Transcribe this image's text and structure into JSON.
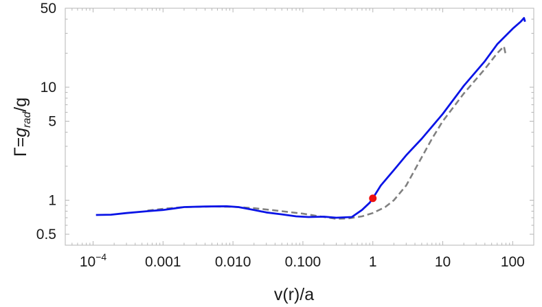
{
  "chart_data": {
    "type": "line",
    "xscale": "log",
    "yscale": "log",
    "xlim": [
      4e-05,
      200
    ],
    "ylim": [
      0.4,
      50
    ],
    "xlabel": "v(r)/a",
    "ylabel": {
      "prefix": "Γ=",
      "symbol": "g",
      "subscript": "rad",
      "suffix": "/g"
    },
    "x_ticks": [
      {
        "value": 0.0001,
        "base": "10",
        "exp": "−4"
      },
      {
        "value": 0.001,
        "label": "0.001"
      },
      {
        "value": 0.01,
        "label": "0.010"
      },
      {
        "value": 0.1,
        "label": "0.100"
      },
      {
        "value": 1,
        "label": "1"
      },
      {
        "value": 10,
        "label": "10"
      },
      {
        "value": 100,
        "label": "100"
      }
    ],
    "y_ticks": [
      {
        "value": 0.5,
        "label": "0.5"
      },
      {
        "value": 1,
        "label": "1"
      },
      {
        "value": 5,
        "label": "5"
      },
      {
        "value": 10,
        "label": "10"
      },
      {
        "value": 50,
        "label": "50"
      }
    ],
    "grid": false,
    "frame": true,
    "colors": {
      "solid": "#0a14e6",
      "dashed": "#808080",
      "marker": "#ee1111",
      "frame": "#b5b5b5",
      "text": "#1a1a1a"
    },
    "series": [
      {
        "style": "solid",
        "points": [
          [
            0.00011,
            0.74
          ],
          [
            0.00018,
            0.745
          ],
          [
            0.0003,
            0.77
          ],
          [
            0.0006,
            0.8
          ],
          [
            0.001,
            0.82
          ],
          [
            0.002,
            0.87
          ],
          [
            0.004,
            0.88
          ],
          [
            0.008,
            0.885
          ],
          [
            0.012,
            0.87
          ],
          [
            0.02,
            0.82
          ],
          [
            0.03,
            0.78
          ],
          [
            0.05,
            0.75
          ],
          [
            0.08,
            0.72
          ],
          [
            0.12,
            0.71
          ],
          [
            0.2,
            0.715
          ],
          [
            0.3,
            0.7
          ],
          [
            0.5,
            0.71
          ],
          [
            0.7,
            0.82
          ],
          [
            0.9,
            0.95
          ],
          [
            1.0,
            1.04
          ],
          [
            1.3,
            1.35
          ],
          [
            2,
            1.85
          ],
          [
            3,
            2.5
          ],
          [
            5,
            3.5
          ],
          [
            10,
            5.8
          ],
          [
            20,
            10.3
          ],
          [
            40,
            17
          ],
          [
            60,
            24
          ],
          [
            100,
            33
          ],
          [
            130,
            38
          ],
          [
            145,
            41
          ],
          [
            150,
            38
          ]
        ]
      },
      {
        "style": "dashed",
        "points": [
          [
            0.0006,
            0.81
          ],
          [
            0.001,
            0.84
          ],
          [
            0.002,
            0.87
          ],
          [
            0.005,
            0.88
          ],
          [
            0.01,
            0.875
          ],
          [
            0.02,
            0.85
          ],
          [
            0.05,
            0.8
          ],
          [
            0.1,
            0.76
          ],
          [
            0.2,
            0.71
          ],
          [
            0.3,
            0.685
          ],
          [
            0.45,
            0.69
          ],
          [
            0.7,
            0.72
          ],
          [
            1.0,
            0.77
          ],
          [
            1.5,
            0.87
          ],
          [
            2,
            1.0
          ],
          [
            3,
            1.35
          ],
          [
            5,
            2.4
          ],
          [
            7,
            3.5
          ],
          [
            10,
            5.0
          ],
          [
            20,
            8.8
          ],
          [
            40,
            14.5
          ],
          [
            60,
            20
          ],
          [
            75,
            23
          ],
          [
            80,
            19
          ]
        ]
      }
    ],
    "marker": {
      "x": 1.0,
      "y": 1.04
    }
  }
}
